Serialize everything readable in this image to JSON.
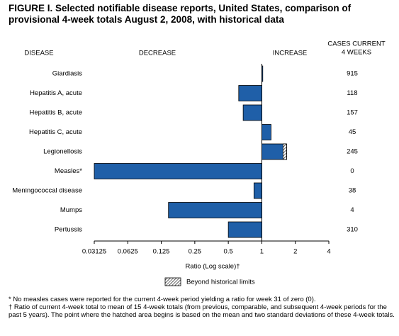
{
  "chart_data": {
    "type": "bar",
    "orientation": "horizontal",
    "title": "FIGURE I. Selected notifiable disease reports, United States, comparison of provisional 4-week totals August 2, 2008, with historical data",
    "category_header": "DISEASE",
    "decrease_label": "DECREASE",
    "increase_label": "INCREASE",
    "cases_header": [
      "CASES CURRENT",
      "4 WEEKS"
    ],
    "categories": [
      "Giardiasis",
      "Hepatitis A, acute",
      "Hepatitis B, acute",
      "Hepatitis C, acute",
      "Legionellosis",
      "Measles*",
      "Meningococcal disease",
      "Mumps",
      "Pertussis"
    ],
    "values": [
      1.02,
      0.62,
      0.68,
      1.21,
      1.67,
      0.03125,
      0.85,
      0.145,
      0.5
    ],
    "historical_limits": [
      null,
      null,
      null,
      null,
      1.55,
      null,
      null,
      null,
      null
    ],
    "cases": [
      915,
      118,
      157,
      45,
      245,
      0,
      38,
      4,
      310
    ],
    "color": "#1f5fa8",
    "log_scale": true,
    "log_base": 2,
    "xlim": [
      0.03125,
      4
    ],
    "xticks": [
      0.03125,
      0.0625,
      0.125,
      0.25,
      0.5,
      1,
      2,
      4
    ],
    "xlabel": "Ratio (Log scale)†",
    "legend_label": "Beyond historical limits",
    "footnotes": [
      "* No measles cases were reported for the current 4-week period yielding a ratio for week 31 of zero (0).",
      "† Ratio of current 4-week total to mean of 15 4-week totals (from previous, comparable, and subsequent 4-week periods for the past 5 years). The point where the hatched area begins is based on the mean and two standard deviations of these 4-week totals."
    ]
  }
}
